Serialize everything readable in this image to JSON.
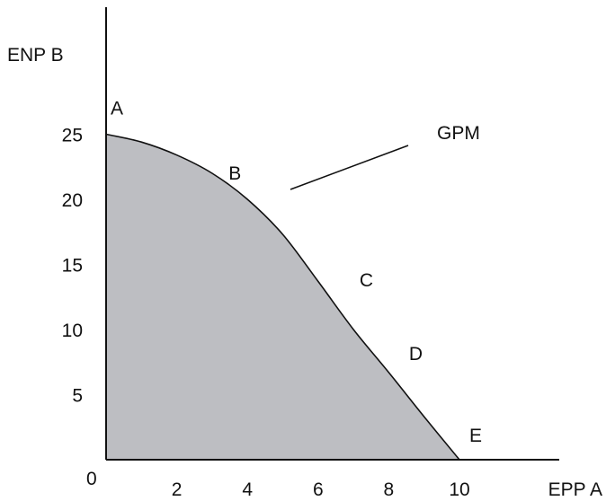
{
  "chart_data": {
    "type": "area",
    "title": "",
    "xlabel": "EPP A",
    "ylabel": "ENP B",
    "origin_label": "0",
    "xlim": [
      0,
      10
    ],
    "ylim": [
      0,
      25
    ],
    "x_ticks": [
      "2",
      "4",
      "6",
      "8",
      "10"
    ],
    "y_ticks": [
      "5",
      "10",
      "15",
      "20",
      "25"
    ],
    "grid": false,
    "fill_color": "#bdbec2",
    "curve_color": "#111111",
    "series": [
      {
        "x": [
          0,
          1,
          2,
          3,
          4,
          5,
          6,
          7,
          8,
          9,
          10
        ],
        "y": [
          25,
          24.4,
          23.4,
          22,
          20,
          17.3,
          13.7,
          10,
          6.7,
          3.3,
          0
        ]
      }
    ],
    "points": [
      {
        "label": "A",
        "x": 0,
        "y": 25
      },
      {
        "label": "B",
        "x": 4,
        "y": 20
      },
      {
        "label": "C",
        "x": 6.5,
        "y": 12.5
      },
      {
        "label": "D",
        "x": 8,
        "y": 6.7
      },
      {
        "label": "E",
        "x": 10,
        "y": 0
      }
    ],
    "annotation": {
      "text": "GPM"
    }
  }
}
